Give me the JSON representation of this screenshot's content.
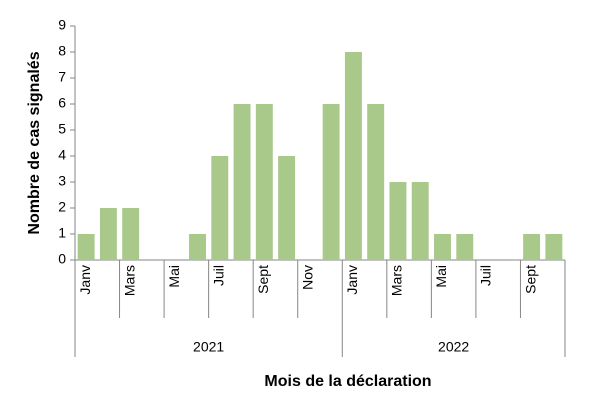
{
  "chart_data": {
    "type": "bar",
    "y_label": "Nombre de cas signalés",
    "x_label": "Mois de la déclaration",
    "groups": [
      {
        "name": "2021",
        "categories": [
          "Janv",
          null,
          "Mars",
          null,
          "Mai",
          null,
          "Juil",
          null,
          "Sept",
          null,
          "Nov",
          null
        ]
      },
      {
        "name": "2022",
        "categories": [
          "Janv",
          null,
          "Mars",
          null,
          "Mai",
          null,
          "Juil",
          null,
          "Sept",
          null
        ]
      }
    ],
    "values": [
      1,
      2,
      2,
      0,
      0,
      1,
      4,
      6,
      6,
      4,
      0,
      6,
      8,
      6,
      3,
      3,
      1,
      1,
      0,
      0,
      1,
      1
    ],
    "color": "#a9c98b",
    "ylim": [
      0,
      9
    ],
    "yticks": [
      0,
      1,
      2,
      3,
      4,
      5,
      6,
      7,
      8,
      9
    ],
    "grid": false
  }
}
